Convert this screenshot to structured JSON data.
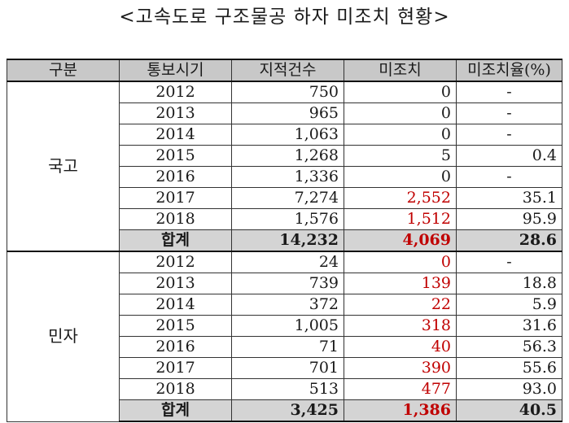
{
  "title": "<고속도로 구조물공 하자 미조치 현황>",
  "headers": [
    "구분",
    "통보시기",
    "지적건수",
    "미조치",
    "미조치율(%)"
  ],
  "groups": [
    {
      "name": "국고",
      "rows": [
        {
          "year": "2012",
          "count": "750",
          "unresolved": "0",
          "rate": "-",
          "red": false
        },
        {
          "year": "2013",
          "count": "965",
          "unresolved": "0",
          "rate": "-",
          "red": false
        },
        {
          "year": "2014",
          "count": "1,063",
          "unresolved": "0",
          "rate": "-",
          "red": false
        },
        {
          "year": "2015",
          "count": "1,268",
          "unresolved": "5",
          "rate": "0.4",
          "red": false
        },
        {
          "year": "2016",
          "count": "1,336",
          "unresolved": "0",
          "rate": "-",
          "red": false
        },
        {
          "year": "2017",
          "count": "7,274",
          "unresolved": "2,552",
          "rate": "35.1",
          "red": true
        },
        {
          "year": "2018",
          "count": "1,576",
          "unresolved": "1,512",
          "rate": "95.9",
          "red": true
        }
      ],
      "total": {
        "label": "합계",
        "count": "14,232",
        "unresolved": "4,069",
        "rate": "28.6"
      }
    },
    {
      "name": "민자",
      "rows": [
        {
          "year": "2012",
          "count": "24",
          "unresolved": "0",
          "rate": "-",
          "red": true
        },
        {
          "year": "2013",
          "count": "739",
          "unresolved": "139",
          "rate": "18.8",
          "red": true
        },
        {
          "year": "2014",
          "count": "372",
          "unresolved": "22",
          "rate": "5.9",
          "red": true
        },
        {
          "year": "2015",
          "count": "1,005",
          "unresolved": "318",
          "rate": "31.6",
          "red": true
        },
        {
          "year": "2016",
          "count": "71",
          "unresolved": "40",
          "rate": "56.3",
          "red": true
        },
        {
          "year": "2017",
          "count": "701",
          "unresolved": "390",
          "rate": "55.6",
          "red": true
        },
        {
          "year": "2018",
          "count": "513",
          "unresolved": "477",
          "rate": "93.0",
          "red": true
        }
      ],
      "total": {
        "label": "합계",
        "count": "3,425",
        "unresolved": "1,386",
        "rate": "40.5"
      }
    }
  ],
  "colors": {
    "unresolved_highlight": "#c00000",
    "header_bg": "#c8c8c8",
    "total_bg": "#d4d4d4"
  }
}
